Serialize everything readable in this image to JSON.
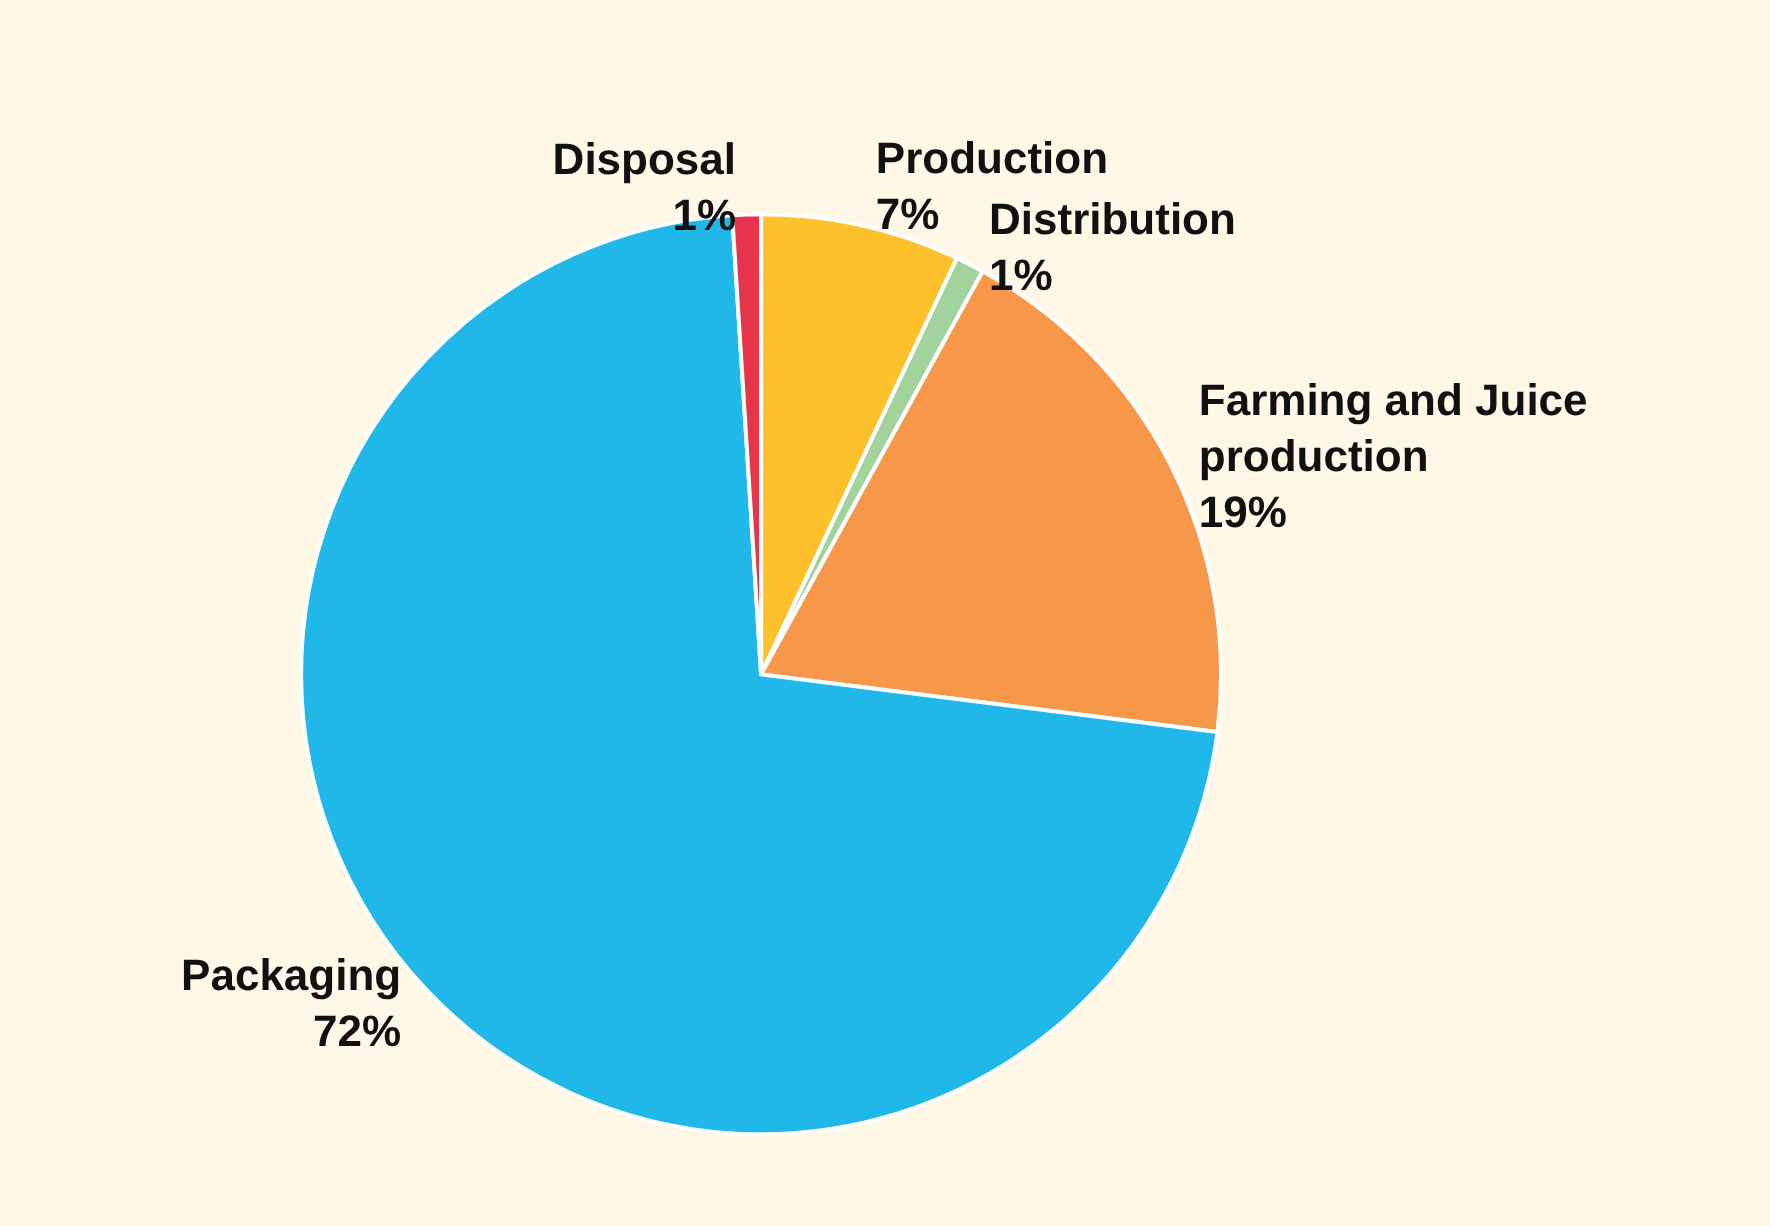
{
  "chart_data": {
    "type": "pie",
    "categories": [
      "Production",
      "Distribution",
      "Farming and Juice production",
      "Packaging",
      "Disposal"
    ],
    "values": [
      7,
      1,
      19,
      72,
      1
    ],
    "colors": [
      "#fdc12c",
      "#a3d39c",
      "#f7974a",
      "#20b8e8",
      "#e8344a"
    ],
    "value_labels": [
      "7%",
      "1%",
      "19%",
      "72%",
      "1%"
    ],
    "legend": false
  }
}
